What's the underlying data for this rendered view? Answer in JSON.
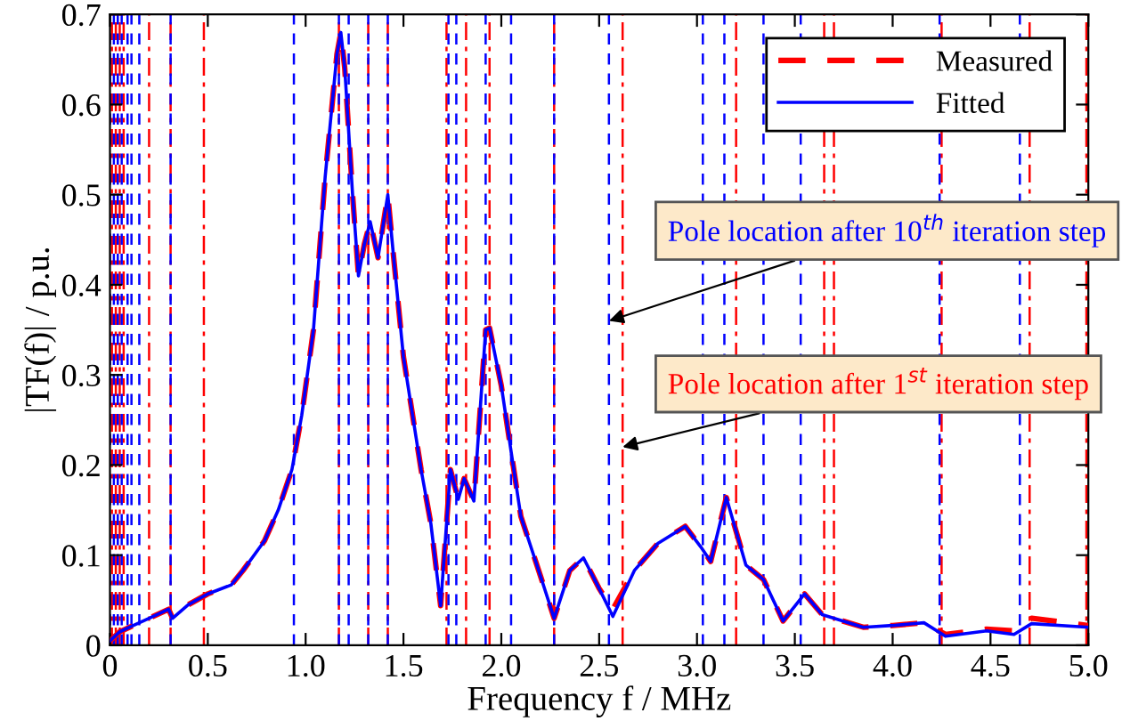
{
  "chart_data": {
    "type": "line",
    "xlabel": "Frequency f / MHz",
    "ylabel": "|TF(f)| / p.u.",
    "xlim": [
      0,
      5
    ],
    "ylim": [
      0,
      0.7
    ],
    "xticks": [
      0,
      0.5,
      {
        "value": 1,
        "label": "1.0"
      },
      1.5,
      {
        "value": 2,
        "label": "2.0"
      },
      2.5,
      {
        "value": 3,
        "label": "3.0"
      },
      3.5,
      {
        "value": 4,
        "label": "4.0"
      },
      4.5,
      {
        "value": 5,
        "label": "5.0"
      }
    ],
    "yticks": [
      0,
      0.1,
      0.2,
      0.3,
      0.4,
      0.5,
      0.6,
      0.7
    ],
    "grid": false,
    "legend": "top right",
    "x": [
      0.0,
      0.05,
      0.1,
      0.2,
      0.3,
      0.32,
      0.4,
      0.5,
      0.62,
      0.68,
      0.79,
      0.86,
      0.93,
      0.98,
      1.04,
      1.1,
      1.16,
      1.18,
      1.2,
      1.24,
      1.27,
      1.3,
      1.33,
      1.37,
      1.42,
      1.45,
      1.5,
      1.59,
      1.64,
      1.69,
      1.74,
      1.78,
      1.81,
      1.86,
      1.92,
      1.94,
      2.0,
      2.05,
      2.1,
      2.2,
      2.27,
      2.35,
      2.42,
      2.5,
      2.57,
      2.68,
      2.8,
      2.94,
      3.02,
      3.07,
      3.15,
      3.25,
      3.34,
      3.44,
      3.55,
      3.64,
      3.85,
      4.0,
      4.16,
      4.27,
      4.48,
      4.62,
      4.71,
      5.0
    ],
    "series": [
      {
        "name": "Measured",
        "color": "#ff0000",
        "line_style": "dashed",
        "values": [
          0.005,
          0.015,
          0.02,
          0.03,
          0.04,
          0.03,
          0.045,
          0.057,
          0.067,
          0.083,
          0.116,
          0.15,
          0.195,
          0.255,
          0.35,
          0.52,
          0.656,
          0.68,
          0.64,
          0.5,
          0.41,
          0.445,
          0.47,
          0.43,
          0.5,
          0.43,
          0.32,
          0.195,
          0.135,
          0.044,
          0.195,
          0.162,
          0.185,
          0.16,
          0.35,
          0.352,
          0.288,
          0.215,
          0.143,
          0.077,
          0.03,
          0.083,
          0.097,
          0.063,
          0.04,
          0.083,
          0.113,
          0.132,
          0.109,
          0.093,
          0.164,
          0.089,
          0.073,
          0.027,
          0.057,
          0.034,
          0.02,
          0.022,
          0.025,
          0.012,
          0.018,
          0.016,
          0.03,
          0.022
        ]
      },
      {
        "name": "Fitted",
        "color": "#0000ff",
        "line_style": "solid",
        "values": [
          0.005,
          0.015,
          0.02,
          0.03,
          0.04,
          0.03,
          0.045,
          0.057,
          0.067,
          0.083,
          0.116,
          0.15,
          0.195,
          0.255,
          0.35,
          0.52,
          0.656,
          0.68,
          0.64,
          0.5,
          0.41,
          0.445,
          0.47,
          0.43,
          0.5,
          0.43,
          0.32,
          0.195,
          0.135,
          0.044,
          0.195,
          0.162,
          0.185,
          0.16,
          0.35,
          0.352,
          0.288,
          0.215,
          0.143,
          0.077,
          0.03,
          0.083,
          0.097,
          0.063,
          0.032,
          0.083,
          0.113,
          0.132,
          0.109,
          0.093,
          0.164,
          0.089,
          0.073,
          0.027,
          0.057,
          0.034,
          0.02,
          0.022,
          0.025,
          0.01,
          0.016,
          0.012,
          0.024,
          0.02
        ]
      }
    ],
    "ref_lines": [
      {
        "axis": "x",
        "value": 0.01,
        "color": "#ff0000",
        "line_style": "dashdot"
      },
      {
        "axis": "x",
        "value": 0.03,
        "color": "#ff0000",
        "line_style": "dashdot"
      },
      {
        "axis": "x",
        "value": 0.05,
        "color": "#ff0000",
        "line_style": "dashdot"
      },
      {
        "axis": "x",
        "value": 0.07,
        "color": "#ff0000",
        "line_style": "dashdot"
      },
      {
        "axis": "x",
        "value": 0.2,
        "color": "#ff0000",
        "line_style": "dashdot"
      },
      {
        "axis": "x",
        "value": 0.31,
        "color": "#ff0000",
        "line_style": "dashdot"
      },
      {
        "axis": "x",
        "value": 0.48,
        "color": "#ff0000",
        "line_style": "dashdot"
      },
      {
        "axis": "x",
        "value": 1.17,
        "color": "#ff0000",
        "line_style": "dashdot"
      },
      {
        "axis": "x",
        "value": 1.32,
        "color": "#ff0000",
        "line_style": "dashdot"
      },
      {
        "axis": "x",
        "value": 1.42,
        "color": "#ff0000",
        "line_style": "dashdot"
      },
      {
        "axis": "x",
        "value": 1.72,
        "color": "#ff0000",
        "line_style": "dashdot"
      },
      {
        "axis": "x",
        "value": 1.82,
        "color": "#ff0000",
        "line_style": "dashdot"
      },
      {
        "axis": "x",
        "value": 1.94,
        "color": "#ff0000",
        "line_style": "dashdot"
      },
      {
        "axis": "x",
        "value": 2.27,
        "color": "#ff0000",
        "line_style": "dashdot"
      },
      {
        "axis": "x",
        "value": 2.62,
        "color": "#ff0000",
        "line_style": "dashdot"
      },
      {
        "axis": "x",
        "value": 3.2,
        "color": "#ff0000",
        "line_style": "dashdot"
      },
      {
        "axis": "x",
        "value": 3.65,
        "color": "#ff0000",
        "line_style": "dashdot"
      },
      {
        "axis": "x",
        "value": 3.7,
        "color": "#ff0000",
        "line_style": "dashdot"
      },
      {
        "axis": "x",
        "value": 4.25,
        "color": "#ff0000",
        "line_style": "dashdot"
      },
      {
        "axis": "x",
        "value": 4.7,
        "color": "#ff0000",
        "line_style": "dashdot"
      },
      {
        "axis": "x",
        "value": 4.99,
        "color": "#ff0000",
        "line_style": "dashdot"
      },
      {
        "axis": "x",
        "value": 0.0,
        "color": "#0000ff",
        "line_style": "dashed"
      },
      {
        "axis": "x",
        "value": 0.02,
        "color": "#0000ff",
        "line_style": "dashed"
      },
      {
        "axis": "x",
        "value": 0.04,
        "color": "#0000ff",
        "line_style": "dashed"
      },
      {
        "axis": "x",
        "value": 0.06,
        "color": "#0000ff",
        "line_style": "dashed"
      },
      {
        "axis": "x",
        "value": 0.09,
        "color": "#0000ff",
        "line_style": "dashed"
      },
      {
        "axis": "x",
        "value": 0.11,
        "color": "#0000ff",
        "line_style": "dashed"
      },
      {
        "axis": "x",
        "value": 0.15,
        "color": "#0000ff",
        "line_style": "dashed"
      },
      {
        "axis": "x",
        "value": 0.31,
        "color": "#0000ff",
        "line_style": "dashed"
      },
      {
        "axis": "x",
        "value": 0.94,
        "color": "#0000ff",
        "line_style": "dashed"
      },
      {
        "axis": "x",
        "value": 1.17,
        "color": "#0000ff",
        "line_style": "dashed"
      },
      {
        "axis": "x",
        "value": 1.22,
        "color": "#0000ff",
        "line_style": "dashed"
      },
      {
        "axis": "x",
        "value": 1.32,
        "color": "#0000ff",
        "line_style": "dashed"
      },
      {
        "axis": "x",
        "value": 1.42,
        "color": "#0000ff",
        "line_style": "dashed"
      },
      {
        "axis": "x",
        "value": 1.73,
        "color": "#0000ff",
        "line_style": "dashed"
      },
      {
        "axis": "x",
        "value": 1.77,
        "color": "#0000ff",
        "line_style": "dashed"
      },
      {
        "axis": "x",
        "value": 1.92,
        "color": "#0000ff",
        "line_style": "dashed"
      },
      {
        "axis": "x",
        "value": 2.05,
        "color": "#0000ff",
        "line_style": "dashed"
      },
      {
        "axis": "x",
        "value": 2.27,
        "color": "#0000ff",
        "line_style": "dashed"
      },
      {
        "axis": "x",
        "value": 2.55,
        "color": "#0000ff",
        "line_style": "dashed"
      },
      {
        "axis": "x",
        "value": 3.03,
        "color": "#0000ff",
        "line_style": "dashed"
      },
      {
        "axis": "x",
        "value": 3.14,
        "color": "#0000ff",
        "line_style": "dashed"
      },
      {
        "axis": "x",
        "value": 3.34,
        "color": "#0000ff",
        "line_style": "dashed"
      },
      {
        "axis": "x",
        "value": 3.53,
        "color": "#0000ff",
        "line_style": "dashed"
      },
      {
        "axis": "x",
        "value": 4.24,
        "color": "#0000ff",
        "line_style": "dashed"
      },
      {
        "axis": "x",
        "value": 4.65,
        "color": "#0000ff",
        "line_style": "dashed"
      }
    ],
    "annotations": [
      {
        "text": "Pole location after 10$^{th}$ iteration step",
        "x": 2.55,
        "y": 0.36
      },
      {
        "text": "Pole location after 1$^{st}$ iteration step",
        "x": 2.62,
        "y": 0.22
      }
    ]
  }
}
